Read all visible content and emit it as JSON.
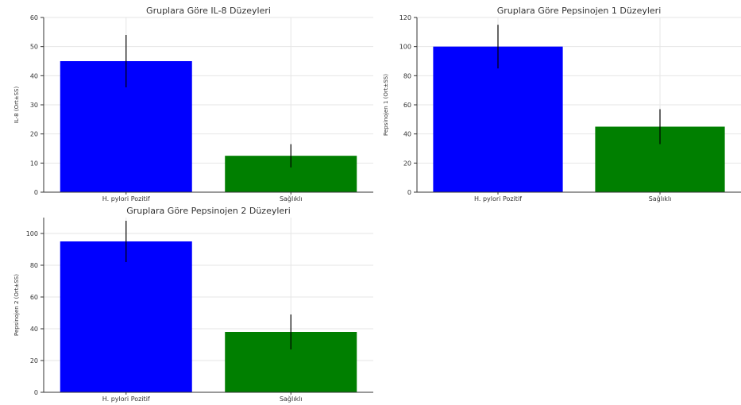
{
  "colors": {
    "positive": "#0000ff",
    "healthy": "#007f00",
    "grid": "#e6e6e6",
    "axis": "#333333",
    "errorbar": "#000000"
  },
  "chart_data": [
    {
      "type": "bar",
      "title": "Gruplara Göre IL-8 Düzeyleri",
      "ylabel": "IL-8 (Ort±SS)",
      "xlabel": "",
      "categories": [
        "H. pylori Pozitif",
        "Sağlıklı"
      ],
      "values": [
        45,
        12.5
      ],
      "errors": [
        9,
        4
      ],
      "ylim": [
        0,
        60
      ],
      "yticks": [
        0,
        10,
        20,
        30,
        40,
        50,
        60
      ],
      "grid": true
    },
    {
      "type": "bar",
      "title": "Gruplara Göre Pepsinojen 1 Düzeyleri",
      "ylabel": "Pepsinojen 1 (Ort±SS)",
      "xlabel": "",
      "categories": [
        "H. pylori Pozitif",
        "Sağlıklı"
      ],
      "values": [
        100,
        45
      ],
      "errors": [
        15,
        12
      ],
      "ylim": [
        0,
        120
      ],
      "yticks": [
        0,
        20,
        40,
        60,
        80,
        100,
        120
      ],
      "grid": true
    },
    {
      "type": "bar",
      "title": "Gruplara Göre Pepsinojen 2 Düzeyleri",
      "ylabel": "Pepsinojen 2 (Ort±SS)",
      "xlabel": "",
      "categories": [
        "H. pylori Pozitif",
        "Sağlıklı"
      ],
      "values": [
        95,
        38
      ],
      "errors": [
        13,
        11
      ],
      "ylim": [
        0,
        110
      ],
      "yticks": [
        0,
        20,
        40,
        60,
        80,
        100
      ],
      "grid": true
    }
  ]
}
